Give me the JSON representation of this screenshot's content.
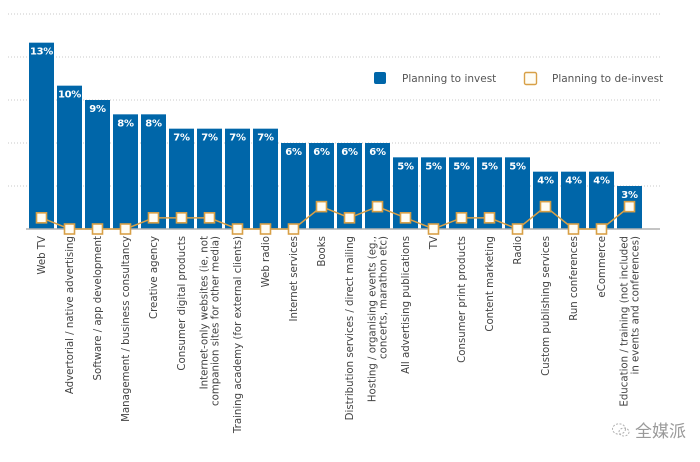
{
  "chart_data": {
    "type": "bar",
    "title": "",
    "xlabel": "",
    "ylabel": "",
    "ylim": [
      0,
      15
    ],
    "grid": true,
    "gridlines": [
      3,
      6,
      9,
      12,
      15
    ],
    "legend_position": "top-right",
    "categories": [
      "Web TV",
      "Advertorial / native advertising",
      "Software / app development",
      "Management / business consultancy",
      "Creative agency",
      "Consumer digital products",
      "Internet-only websites (ie, not|companion sites for other media)",
      "Training academy (for external clients)",
      "Web radio",
      "Internet services",
      "Books",
      "Distribution services / direct mailing",
      "Hosting / organising events (eg.,|concerts, marathon etc)",
      "All advertising publications",
      "TV",
      "Consumer print products",
      "Content marketing",
      "Radio",
      "Custom publishing services",
      "Run conferences",
      "eCommerce",
      "Education / training (not included|in events and conferences)"
    ],
    "series": [
      {
        "name": "Planning to invest",
        "kind": "bar",
        "color": "#0066a9",
        "values": [
          13,
          10,
          9,
          8,
          8,
          7,
          7,
          7,
          7,
          6,
          6,
          6,
          6,
          5,
          5,
          5,
          5,
          5,
          4,
          4,
          4,
          3
        ],
        "data_labels": [
          "13%",
          "10%",
          "9%",
          "8%",
          "8%",
          "7%",
          "7%",
          "7%",
          "7%",
          "6%",
          "6%",
          "6%",
          "6%",
          "5%",
          "5%",
          "5%",
          "5%",
          "5%",
          "4%",
          "4%",
          "4%",
          "3%"
        ]
      },
      {
        "name": "Planning to de-invest",
        "kind": "line-marker",
        "color": "#d8a047",
        "values": [
          1,
          0,
          0,
          0,
          1,
          1,
          1,
          0,
          0,
          0,
          2,
          1,
          2,
          1,
          0,
          1,
          1,
          0,
          2,
          0,
          0,
          2
        ]
      }
    ]
  },
  "legend": {
    "invest_label": "Planning to invest",
    "deinvest_label": "Planning to de-invest"
  },
  "watermark": {
    "icon": "wechat-icon",
    "text": "全媒派"
  }
}
